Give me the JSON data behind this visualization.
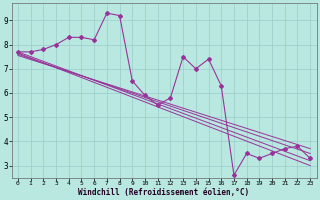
{
  "title": "",
  "xlabel": "Windchill (Refroidissement éolien,°C)",
  "ylabel": "",
  "bg_color": "#b8e8e0",
  "grid_color": "#99cccc",
  "line_color": "#993399",
  "xlim": [
    -0.5,
    23.5
  ],
  "ylim": [
    2.5,
    9.7
  ],
  "xticks": [
    0,
    1,
    2,
    3,
    4,
    5,
    6,
    7,
    8,
    9,
    10,
    11,
    12,
    13,
    14,
    15,
    16,
    17,
    18,
    19,
    20,
    21,
    22,
    23
  ],
  "yticks": [
    3,
    4,
    5,
    6,
    7,
    8,
    9
  ],
  "main_x": [
    0,
    1,
    2,
    3,
    4,
    5,
    6,
    7,
    8,
    9,
    10,
    11,
    12,
    13,
    14,
    15,
    16,
    17,
    18,
    19,
    20,
    21,
    22,
    23
  ],
  "main_y": [
    7.7,
    7.7,
    7.8,
    8.0,
    8.3,
    8.3,
    8.2,
    9.3,
    9.2,
    6.5,
    5.9,
    5.5,
    5.8,
    7.5,
    7.0,
    7.4,
    6.3,
    2.6,
    3.5,
    3.3,
    3.5,
    3.7,
    3.8,
    3.3
  ],
  "trend1_x": [
    0,
    23
  ],
  "trend1_y": [
    7.7,
    3.2
  ],
  "trend2_x": [
    0,
    23
  ],
  "trend2_y": [
    7.6,
    3.5
  ],
  "trend3_x": [
    0,
    23
  ],
  "trend3_y": [
    7.55,
    3.7
  ],
  "trend4_x": [
    0,
    23
  ],
  "trend4_y": [
    7.65,
    3.0
  ]
}
